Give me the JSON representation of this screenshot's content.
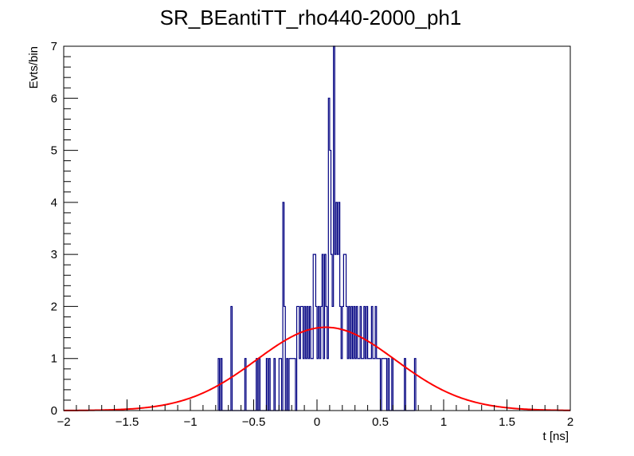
{
  "chart_data": {
    "type": "histogram",
    "title": "SR_BEantiTT_rho440-2000_ph1",
    "xlabel": "t [ns]",
    "ylabel": "Evts/bin",
    "xlim": [
      -2,
      2
    ],
    "ylim": [
      0,
      7
    ],
    "x_ticks": [
      -2,
      -1.5,
      -1,
      -0.5,
      0,
      0.5,
      1,
      1.5,
      2
    ],
    "x_tick_labels": [
      "−2",
      "−1.5",
      "−1",
      "−0.5",
      "0",
      "0.5",
      "1",
      "1.5",
      "2"
    ],
    "y_ticks": [
      0,
      1,
      2,
      3,
      4,
      5,
      6,
      7
    ],
    "y_tick_labels": [
      "0",
      "1",
      "2",
      "3",
      "4",
      "5",
      "6",
      "7"
    ],
    "grid": false,
    "bin_width": 0.01,
    "series": [
      {
        "kind": "histogram",
        "color": "#000080",
        "bins": [
          {
            "x": -0.78,
            "y": 1
          },
          {
            "x": -0.77,
            "y": 0
          },
          {
            "x": -0.76,
            "y": 1
          },
          {
            "x": -0.68,
            "y": 2
          },
          {
            "x": -0.57,
            "y": 1
          },
          {
            "x": -0.48,
            "y": 1
          },
          {
            "x": -0.47,
            "y": 0
          },
          {
            "x": -0.46,
            "y": 1
          },
          {
            "x": -0.4,
            "y": 1
          },
          {
            "x": -0.39,
            "y": 0
          },
          {
            "x": -0.38,
            "y": 1
          },
          {
            "x": -0.34,
            "y": 1
          },
          {
            "x": -0.3,
            "y": 1
          },
          {
            "x": -0.29,
            "y": 1
          },
          {
            "x": -0.27,
            "y": 4
          },
          {
            "x": -0.26,
            "y": 2
          },
          {
            "x": -0.25,
            "y": 0
          },
          {
            "x": -0.24,
            "y": 1
          },
          {
            "x": -0.22,
            "y": 1
          },
          {
            "x": -0.21,
            "y": 1
          },
          {
            "x": -0.2,
            "y": 1
          },
          {
            "x": -0.19,
            "y": 1
          },
          {
            "x": -0.18,
            "y": 1
          },
          {
            "x": -0.16,
            "y": 2
          },
          {
            "x": -0.15,
            "y": 2
          },
          {
            "x": -0.14,
            "y": 1
          },
          {
            "x": -0.13,
            "y": 2
          },
          {
            "x": -0.12,
            "y": 2
          },
          {
            "x": -0.11,
            "y": 1
          },
          {
            "x": -0.1,
            "y": 2
          },
          {
            "x": -0.09,
            "y": 1
          },
          {
            "x": -0.08,
            "y": 2
          },
          {
            "x": -0.07,
            "y": 1
          },
          {
            "x": -0.06,
            "y": 2
          },
          {
            "x": -0.05,
            "y": 1
          },
          {
            "x": -0.04,
            "y": 1
          },
          {
            "x": -0.03,
            "y": 3
          },
          {
            "x": -0.02,
            "y": 3
          },
          {
            "x": -0.01,
            "y": 2
          },
          {
            "x": 0.0,
            "y": 1
          },
          {
            "x": 0.01,
            "y": 2
          },
          {
            "x": 0.02,
            "y": 1
          },
          {
            "x": 0.03,
            "y": 2
          },
          {
            "x": 0.04,
            "y": 3
          },
          {
            "x": 0.05,
            "y": 1
          },
          {
            "x": 0.06,
            "y": 3
          },
          {
            "x": 0.07,
            "y": 2
          },
          {
            "x": 0.08,
            "y": 1
          },
          {
            "x": 0.09,
            "y": 6
          },
          {
            "x": 0.1,
            "y": 5
          },
          {
            "x": 0.11,
            "y": 3
          },
          {
            "x": 0.12,
            "y": 2
          },
          {
            "x": 0.13,
            "y": 7
          },
          {
            "x": 0.14,
            "y": 3
          },
          {
            "x": 0.15,
            "y": 4
          },
          {
            "x": 0.16,
            "y": 3
          },
          {
            "x": 0.17,
            "y": 4
          },
          {
            "x": 0.18,
            "y": 2
          },
          {
            "x": 0.19,
            "y": 1
          },
          {
            "x": 0.2,
            "y": 2
          },
          {
            "x": 0.21,
            "y": 3
          },
          {
            "x": 0.22,
            "y": 3
          },
          {
            "x": 0.23,
            "y": 2
          },
          {
            "x": 0.24,
            "y": 1
          },
          {
            "x": 0.25,
            "y": 2
          },
          {
            "x": 0.26,
            "y": 1
          },
          {
            "x": 0.27,
            "y": 2
          },
          {
            "x": 0.28,
            "y": 1
          },
          {
            "x": 0.29,
            "y": 2
          },
          {
            "x": 0.3,
            "y": 1
          },
          {
            "x": 0.31,
            "y": 2
          },
          {
            "x": 0.32,
            "y": 1
          },
          {
            "x": 0.33,
            "y": 1
          },
          {
            "x": 0.34,
            "y": 2
          },
          {
            "x": 0.35,
            "y": 1
          },
          {
            "x": 0.36,
            "y": 1
          },
          {
            "x": 0.37,
            "y": 2
          },
          {
            "x": 0.38,
            "y": 1
          },
          {
            "x": 0.39,
            "y": 2
          },
          {
            "x": 0.4,
            "y": 1
          },
          {
            "x": 0.41,
            "y": 1
          },
          {
            "x": 0.42,
            "y": 1
          },
          {
            "x": 0.43,
            "y": 2
          },
          {
            "x": 0.44,
            "y": 1
          },
          {
            "x": 0.45,
            "y": 1
          },
          {
            "x": 0.46,
            "y": 2
          },
          {
            "x": 0.47,
            "y": 1
          },
          {
            "x": 0.48,
            "y": 1
          },
          {
            "x": 0.49,
            "y": 1
          },
          {
            "x": 0.5,
            "y": 0
          },
          {
            "x": 0.51,
            "y": 1
          },
          {
            "x": 0.52,
            "y": 1
          },
          {
            "x": 0.53,
            "y": 1
          },
          {
            "x": 0.54,
            "y": 1
          },
          {
            "x": 0.56,
            "y": 1
          },
          {
            "x": 0.59,
            "y": 1
          },
          {
            "x": 0.69,
            "y": 1
          },
          {
            "x": 0.77,
            "y": 1
          }
        ]
      },
      {
        "kind": "fit",
        "shape": "gaussian",
        "color": "#ff0000",
        "amplitude": 1.6,
        "mean": 0.07,
        "sigma": 0.55
      }
    ]
  }
}
